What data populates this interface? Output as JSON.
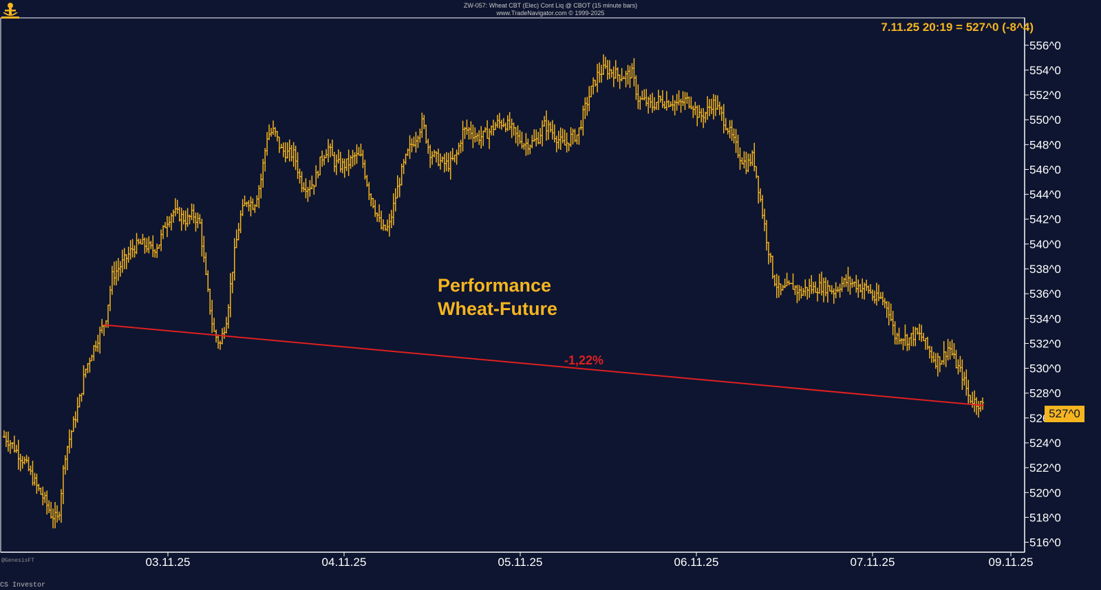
{
  "header": {
    "line1": "ZW-057:  Wheat CBT (Elec) Cont Liq @ CBOT  (15 minute bars)",
    "line2": "www.TradeNavigator.com © 1999-2025"
  },
  "quote": "7.11.25 20:19 = 527^0 (-8^4)",
  "annotation": {
    "title_line1": "Performance",
    "title_line2": "Wheat-Future",
    "change": "-1,22%"
  },
  "last_price_label": "527^0",
  "credits": {
    "corner": "@GenesisFT",
    "footer": "CS Investor"
  },
  "colors": {
    "background": "#0e1530",
    "bars": "#f5b51f",
    "trendline": "#e02020",
    "axis_text": "#ffffff"
  },
  "chart_data": {
    "type": "bar",
    "subtype": "ohlc_15min",
    "ylim": [
      515.2,
      558.2
    ],
    "y_ticks": [
      556,
      554,
      552,
      550,
      548,
      546,
      544,
      542,
      540,
      538,
      536,
      534,
      532,
      530,
      528,
      526,
      524,
      522,
      520,
      518,
      516
    ],
    "y_tick_labels": [
      "556^0",
      "554^0",
      "552^0",
      "550^0",
      "548^0",
      "546^0",
      "544^0",
      "542^0",
      "540^0",
      "538^0",
      "536^0",
      "534^0",
      "532^0",
      "530^0",
      "528^0",
      "526^0",
      "524^0",
      "522^0",
      "520^0",
      "518^0",
      "516^0"
    ],
    "x_tick_labels": [
      "03.11.25",
      "04.11.25",
      "05.11.25",
      "06.11.25",
      "07.11.25",
      "09.11.25"
    ],
    "trendline": {
      "from": {
        "date": "02.11.25",
        "price": 533.5
      },
      "to": {
        "date": "07.11.25",
        "price": 527.0
      },
      "label": "-1,22%"
    },
    "last": 527.0,
    "price_path": [
      [
        0,
        524.5
      ],
      [
        1,
        524
      ],
      [
        2,
        523.2
      ],
      [
        3,
        522.5
      ],
      [
        4,
        521.4
      ],
      [
        5,
        520.3
      ],
      [
        6,
        519.4
      ],
      [
        7,
        518.2
      ],
      [
        8,
        517.8
      ],
      [
        9,
        523
      ],
      [
        10,
        525
      ],
      [
        11,
        527
      ],
      [
        12,
        529.8
      ],
      [
        13,
        531.3
      ],
      [
        14,
        532.6
      ],
      [
        15,
        533.8
      ],
      [
        16,
        537.4
      ],
      [
        17,
        538.1
      ],
      [
        18,
        538.8
      ],
      [
        19,
        539.6
      ],
      [
        20,
        540
      ],
      [
        21,
        539.9
      ],
      [
        22,
        539.5
      ],
      [
        23,
        540.1
      ],
      [
        24,
        541.8
      ],
      [
        25,
        542.6
      ],
      [
        26,
        542.3
      ],
      [
        27,
        541.9
      ],
      [
        28,
        542.4
      ],
      [
        29,
        541.6
      ],
      [
        30,
        536.8
      ],
      [
        31,
        533
      ],
      [
        32,
        531.9
      ],
      [
        33,
        534.2
      ],
      [
        34,
        538.8
      ],
      [
        35,
        542.2
      ],
      [
        36,
        543.6
      ],
      [
        37,
        543.1
      ],
      [
        38,
        545
      ],
      [
        39,
        548.8
      ],
      [
        40,
        549.1
      ],
      [
        41,
        547.6
      ],
      [
        42,
        547.3
      ],
      [
        43,
        547.2
      ],
      [
        44,
        544.9
      ],
      [
        45,
        544.6
      ],
      [
        46,
        545
      ],
      [
        47,
        546.9
      ],
      [
        48,
        547.8
      ],
      [
        49,
        546.5
      ],
      [
        50,
        546.3
      ],
      [
        51,
        546.5
      ],
      [
        52,
        547.1
      ],
      [
        53,
        546.9
      ],
      [
        54,
        544.4
      ],
      [
        55,
        542.8
      ],
      [
        56,
        541.1
      ],
      [
        57,
        541.3
      ],
      [
        58,
        543.8
      ],
      [
        59,
        546
      ],
      [
        60,
        547.6
      ],
      [
        61,
        548.6
      ],
      [
        62,
        549.8
      ],
      [
        63,
        547.5
      ],
      [
        64,
        546.9
      ],
      [
        65,
        546.5
      ],
      [
        66,
        546.4
      ],
      [
        67,
        547.1
      ],
      [
        68,
        549.1
      ],
      [
        69,
        549.2
      ],
      [
        70,
        548.6
      ],
      [
        71,
        548.7
      ],
      [
        72,
        549.1
      ],
      [
        73,
        549.7
      ],
      [
        74,
        549.8
      ],
      [
        75,
        549.4
      ],
      [
        76,
        548.6
      ],
      [
        77,
        548.1
      ],
      [
        78,
        548.1
      ],
      [
        79,
        548.4
      ],
      [
        80,
        549.6
      ],
      [
        81,
        549.2
      ],
      [
        82,
        548.5
      ],
      [
        83,
        547.9
      ],
      [
        84,
        548.6
      ],
      [
        85,
        548.8
      ],
      [
        86,
        550.8
      ],
      [
        87,
        552.4
      ],
      [
        88,
        553.7
      ],
      [
        89,
        554.1
      ],
      [
        90,
        553.9
      ],
      [
        91,
        553.6
      ],
      [
        92,
        553.5
      ],
      [
        93,
        553.8
      ],
      [
        94,
        551.6
      ],
      [
        95,
        551.5
      ],
      [
        96,
        551.1
      ],
      [
        97,
        551.6
      ],
      [
        98,
        551.4
      ],
      [
        99,
        551.5
      ],
      [
        100,
        551.2
      ],
      [
        101,
        551.6
      ],
      [
        102,
        551.3
      ],
      [
        103,
        550.2
      ],
      [
        104,
        550.6
      ],
      [
        105,
        551.4
      ],
      [
        106,
        550.7
      ],
      [
        107,
        549.6
      ],
      [
        108,
        548.4
      ],
      [
        109,
        547.1
      ],
      [
        110,
        546.3
      ],
      [
        111,
        547.1
      ],
      [
        112,
        543.8
      ],
      [
        113,
        540.4
      ],
      [
        114,
        537.3
      ],
      [
        115,
        536.1
      ],
      [
        116,
        536.5
      ],
      [
        117,
        536.6
      ],
      [
        118,
        536
      ],
      [
        119,
        536.5
      ],
      [
        120,
        536.4
      ],
      [
        121,
        536.6
      ],
      [
        122,
        536.5
      ],
      [
        123,
        536.2
      ],
      [
        124,
        536.8
      ],
      [
        125,
        537
      ],
      [
        126,
        536.8
      ],
      [
        127,
        536.5
      ],
      [
        128,
        536.4
      ],
      [
        129,
        535.6
      ],
      [
        130,
        535.6
      ],
      [
        131,
        534.9
      ],
      [
        132,
        532.6
      ],
      [
        133,
        532.6
      ],
      [
        134,
        532.3
      ],
      [
        135,
        532.8
      ],
      [
        136,
        532.5
      ],
      [
        137,
        531.5
      ],
      [
        138,
        530.6
      ],
      [
        139,
        530.8
      ],
      [
        140,
        531.8
      ],
      [
        141,
        530.4
      ],
      [
        142,
        529.4
      ],
      [
        143,
        527.6
      ],
      [
        144,
        527.3
      ],
      [
        145,
        527
      ]
    ]
  }
}
